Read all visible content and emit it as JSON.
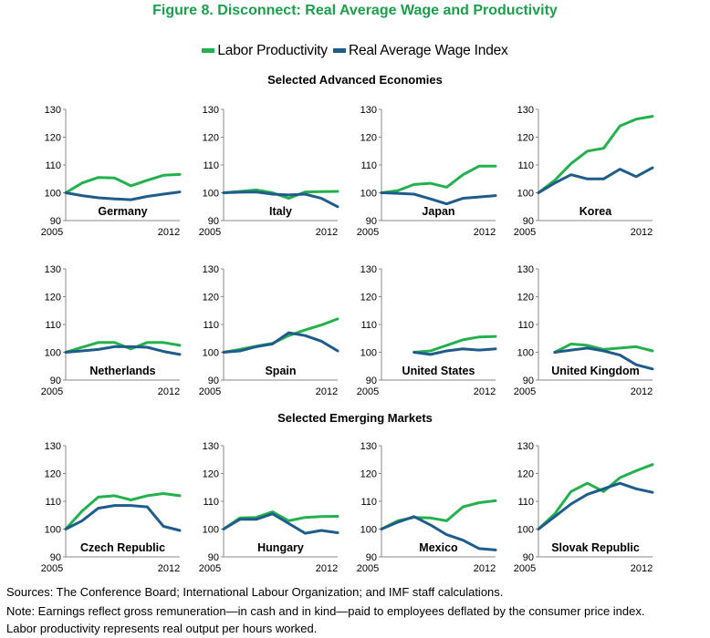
{
  "title": "Figure 8. Disconnect: Real Average Wage and Productivity",
  "colors": {
    "title": "#1aa04b",
    "productivity": "#22b14c",
    "wage": "#1f5c8c",
    "axis": "#888888"
  },
  "legend": {
    "productivity": "Labor Productivity",
    "wage": "Real Average Wage Index"
  },
  "sections": {
    "advanced": "Selected Advanced Economies",
    "emerging": "Selected Emerging Markets"
  },
  "notes": {
    "sources": "Sources: The Conference Board; International Labour Organization; and IMF staff calculations.",
    "note_line1": "Note: Earnings reflect gross remuneration—in cash and in kind—paid to employees deflated by the consumer price index.",
    "note_line2": "Labor productivity represents real output per hours worked."
  },
  "chart_data": [
    {
      "type": "line",
      "title": "Germany",
      "x": [
        2005,
        2006,
        2007,
        2008,
        2009,
        2010,
        2011,
        2012
      ],
      "xticks": [
        "2005",
        "2012"
      ],
      "yticks": [
        "90",
        "100",
        "110",
        "120",
        "130"
      ],
      "ylim": [
        90,
        130
      ],
      "series": [
        {
          "name": "Labor Productivity",
          "values": [
            100,
            103.5,
            105.5,
            105.3,
            102.5,
            104.5,
            106.3,
            106.6
          ]
        },
        {
          "name": "Real Average Wage Index",
          "values": [
            100,
            99,
            98.2,
            97.8,
            97.5,
            98.7,
            99.5,
            100.3
          ]
        }
      ]
    },
    {
      "type": "line",
      "title": "Italy",
      "x": [
        2005,
        2006,
        2007,
        2008,
        2009,
        2010,
        2011,
        2012
      ],
      "xticks": [
        "2005",
        "2012"
      ],
      "yticks": [
        "90",
        "100",
        "110",
        "120",
        "130"
      ],
      "ylim": [
        90,
        130
      ],
      "series": [
        {
          "name": "Labor Productivity",
          "values": [
            100,
            100.5,
            101,
            100,
            98,
            100.3,
            100.4,
            100.5
          ]
        },
        {
          "name": "Real Average Wage Index",
          "values": [
            100,
            100.2,
            100.3,
            99.5,
            99.2,
            99.5,
            98,
            95
          ]
        }
      ]
    },
    {
      "type": "line",
      "title": "Japan",
      "x": [
        2005,
        2006,
        2007,
        2008,
        2009,
        2010,
        2011,
        2012
      ],
      "xticks": [
        "2005",
        "2012"
      ],
      "yticks": [
        "90",
        "100",
        "110",
        "120",
        "130"
      ],
      "ylim": [
        90,
        130
      ],
      "series": [
        {
          "name": "Labor Productivity",
          "values": [
            100,
            100.8,
            103,
            103.4,
            102,
            106.5,
            109.6,
            109.6
          ]
        },
        {
          "name": "Real Average Wage Index",
          "values": [
            100,
            99.8,
            99.5,
            97.8,
            96,
            98,
            98.5,
            99
          ]
        }
      ]
    },
    {
      "type": "line",
      "title": "Korea",
      "x": [
        2005,
        2006,
        2007,
        2008,
        2009,
        2010,
        2011,
        2012
      ],
      "xticks": [
        "2005",
        "2012"
      ],
      "yticks": [
        "90",
        "100",
        "110",
        "120",
        "130"
      ],
      "ylim": [
        90,
        130
      ],
      "series": [
        {
          "name": "Labor Productivity",
          "values": [
            100,
            104.5,
            110.5,
            115,
            116,
            124,
            126.5,
            127.5
          ]
        },
        {
          "name": "Real Average Wage Index",
          "values": [
            100,
            103.5,
            106.5,
            105,
            105,
            108.5,
            105.8,
            109
          ]
        }
      ]
    },
    {
      "type": "line",
      "title": "Netherlands",
      "x": [
        2005,
        2006,
        2007,
        2008,
        2009,
        2010,
        2011,
        2012
      ],
      "xticks": [
        "2005",
        "2012"
      ],
      "yticks": [
        "90",
        "100",
        "110",
        "120",
        "130"
      ],
      "ylim": [
        90,
        130
      ],
      "series": [
        {
          "name": "Labor Productivity",
          "values": [
            100,
            101.8,
            103.5,
            103.5,
            101.2,
            103.5,
            103.5,
            102.5
          ]
        },
        {
          "name": "Real Average Wage Index",
          "values": [
            100,
            100.5,
            101,
            102,
            102,
            101.8,
            100.3,
            99.2
          ]
        }
      ]
    },
    {
      "type": "line",
      "title": "Spain",
      "x": [
        2005,
        2006,
        2007,
        2008,
        2009,
        2010,
        2011,
        2012
      ],
      "xticks": [
        "2005",
        "2012"
      ],
      "yticks": [
        "90",
        "100",
        "110",
        "120",
        "130"
      ],
      "ylim": [
        90,
        130
      ],
      "series": [
        {
          "name": "Labor Productivity",
          "values": [
            100,
            101,
            102.2,
            103.2,
            106,
            108,
            109.8,
            112
          ]
        },
        {
          "name": "Real Average Wage Index",
          "values": [
            100,
            100.5,
            102,
            103,
            107,
            106,
            104,
            100.5
          ]
        }
      ]
    },
    {
      "type": "line",
      "title": "United States",
      "x": [
        2007,
        2008,
        2009,
        2010,
        2011,
        2012
      ],
      "xticks": [
        "2005",
        "2012"
      ],
      "xlim": [
        2005,
        2012
      ],
      "yticks": [
        "90",
        "100",
        "110",
        "120",
        "130"
      ],
      "ylim": [
        90,
        130
      ],
      "series": [
        {
          "name": "Labor Productivity",
          "values": [
            100,
            100.5,
            102.5,
            104.5,
            105.5,
            105.7
          ]
        },
        {
          "name": "Real Average Wage Index",
          "values": [
            100,
            99.2,
            100.5,
            101.2,
            100.8,
            101.2
          ]
        }
      ]
    },
    {
      "type": "line",
      "title": "United Kingdom",
      "x": [
        2006,
        2007,
        2008,
        2009,
        2010,
        2011,
        2012
      ],
      "xticks": [
        "2005",
        "2012"
      ],
      "xlim": [
        2005,
        2012
      ],
      "yticks": [
        "90",
        "100",
        "110",
        "120",
        "130"
      ],
      "ylim": [
        90,
        130
      ],
      "series": [
        {
          "name": "Labor Productivity",
          "values": [
            100,
            103,
            102.5,
            101,
            101.5,
            102,
            100.5
          ]
        },
        {
          "name": "Real Average Wage Index",
          "values": [
            100,
            100.8,
            101.5,
            100.5,
            99,
            95.5,
            94
          ]
        }
      ]
    },
    {
      "type": "line",
      "title": "Czech Republic",
      "x": [
        2005,
        2006,
        2007,
        2008,
        2009,
        2010,
        2011,
        2012
      ],
      "xticks": [
        "2005",
        "2012"
      ],
      "yticks": [
        "90",
        "100",
        "110",
        "120",
        "130"
      ],
      "ylim": [
        90,
        130
      ],
      "series": [
        {
          "name": "Labor Productivity",
          "values": [
            100,
            106.5,
            111.5,
            112,
            110.5,
            112,
            112.8,
            112
          ]
        },
        {
          "name": "Real Average Wage Index",
          "values": [
            100,
            103,
            107.5,
            108.5,
            108.5,
            108,
            101,
            99.5
          ]
        }
      ]
    },
    {
      "type": "line",
      "title": "Hungary",
      "x": [
        2005,
        2006,
        2007,
        2008,
        2009,
        2010,
        2011,
        2012
      ],
      "xticks": [
        "2005",
        "2012"
      ],
      "yticks": [
        "90",
        "100",
        "110",
        "120",
        "130"
      ],
      "ylim": [
        90,
        130
      ],
      "series": [
        {
          "name": "Labor Productivity",
          "values": [
            100,
            104,
            104.2,
            106.2,
            103,
            104.2,
            104.5,
            104.6
          ]
        },
        {
          "name": "Real Average Wage Index",
          "values": [
            100,
            103.5,
            103.5,
            105.5,
            102,
            98.5,
            99.5,
            98.7
          ]
        }
      ]
    },
    {
      "type": "line",
      "title": "Mexico",
      "x": [
        2005,
        2006,
        2007,
        2008,
        2009,
        2010,
        2011,
        2012
      ],
      "xticks": [
        "2005",
        "2012"
      ],
      "yticks": [
        "90",
        "100",
        "110",
        "120",
        "130"
      ],
      "ylim": [
        90,
        130
      ],
      "series": [
        {
          "name": "Labor Productivity",
          "values": [
            100,
            103,
            104.2,
            104,
            103,
            108,
            109.5,
            110.2
          ]
        },
        {
          "name": "Real Average Wage Index",
          "values": [
            100,
            102.5,
            104.5,
            101.5,
            98,
            96,
            93,
            92.5
          ]
        }
      ]
    },
    {
      "type": "line",
      "title": "Slovak Republic",
      "x": [
        2005,
        2006,
        2007,
        2008,
        2009,
        2010,
        2011,
        2012
      ],
      "xticks": [
        "2005",
        "2012"
      ],
      "yticks": [
        "90",
        "100",
        "110",
        "120",
        "130"
      ],
      "ylim": [
        90,
        130
      ],
      "series": [
        {
          "name": "Labor Productivity",
          "values": [
            100,
            105.5,
            113.5,
            116.5,
            113.5,
            118.5,
            121,
            123.2
          ]
        },
        {
          "name": "Real Average Wage Index",
          "values": [
            100,
            104.5,
            109,
            112.5,
            114.5,
            116.5,
            114.5,
            113.2
          ]
        }
      ]
    }
  ]
}
